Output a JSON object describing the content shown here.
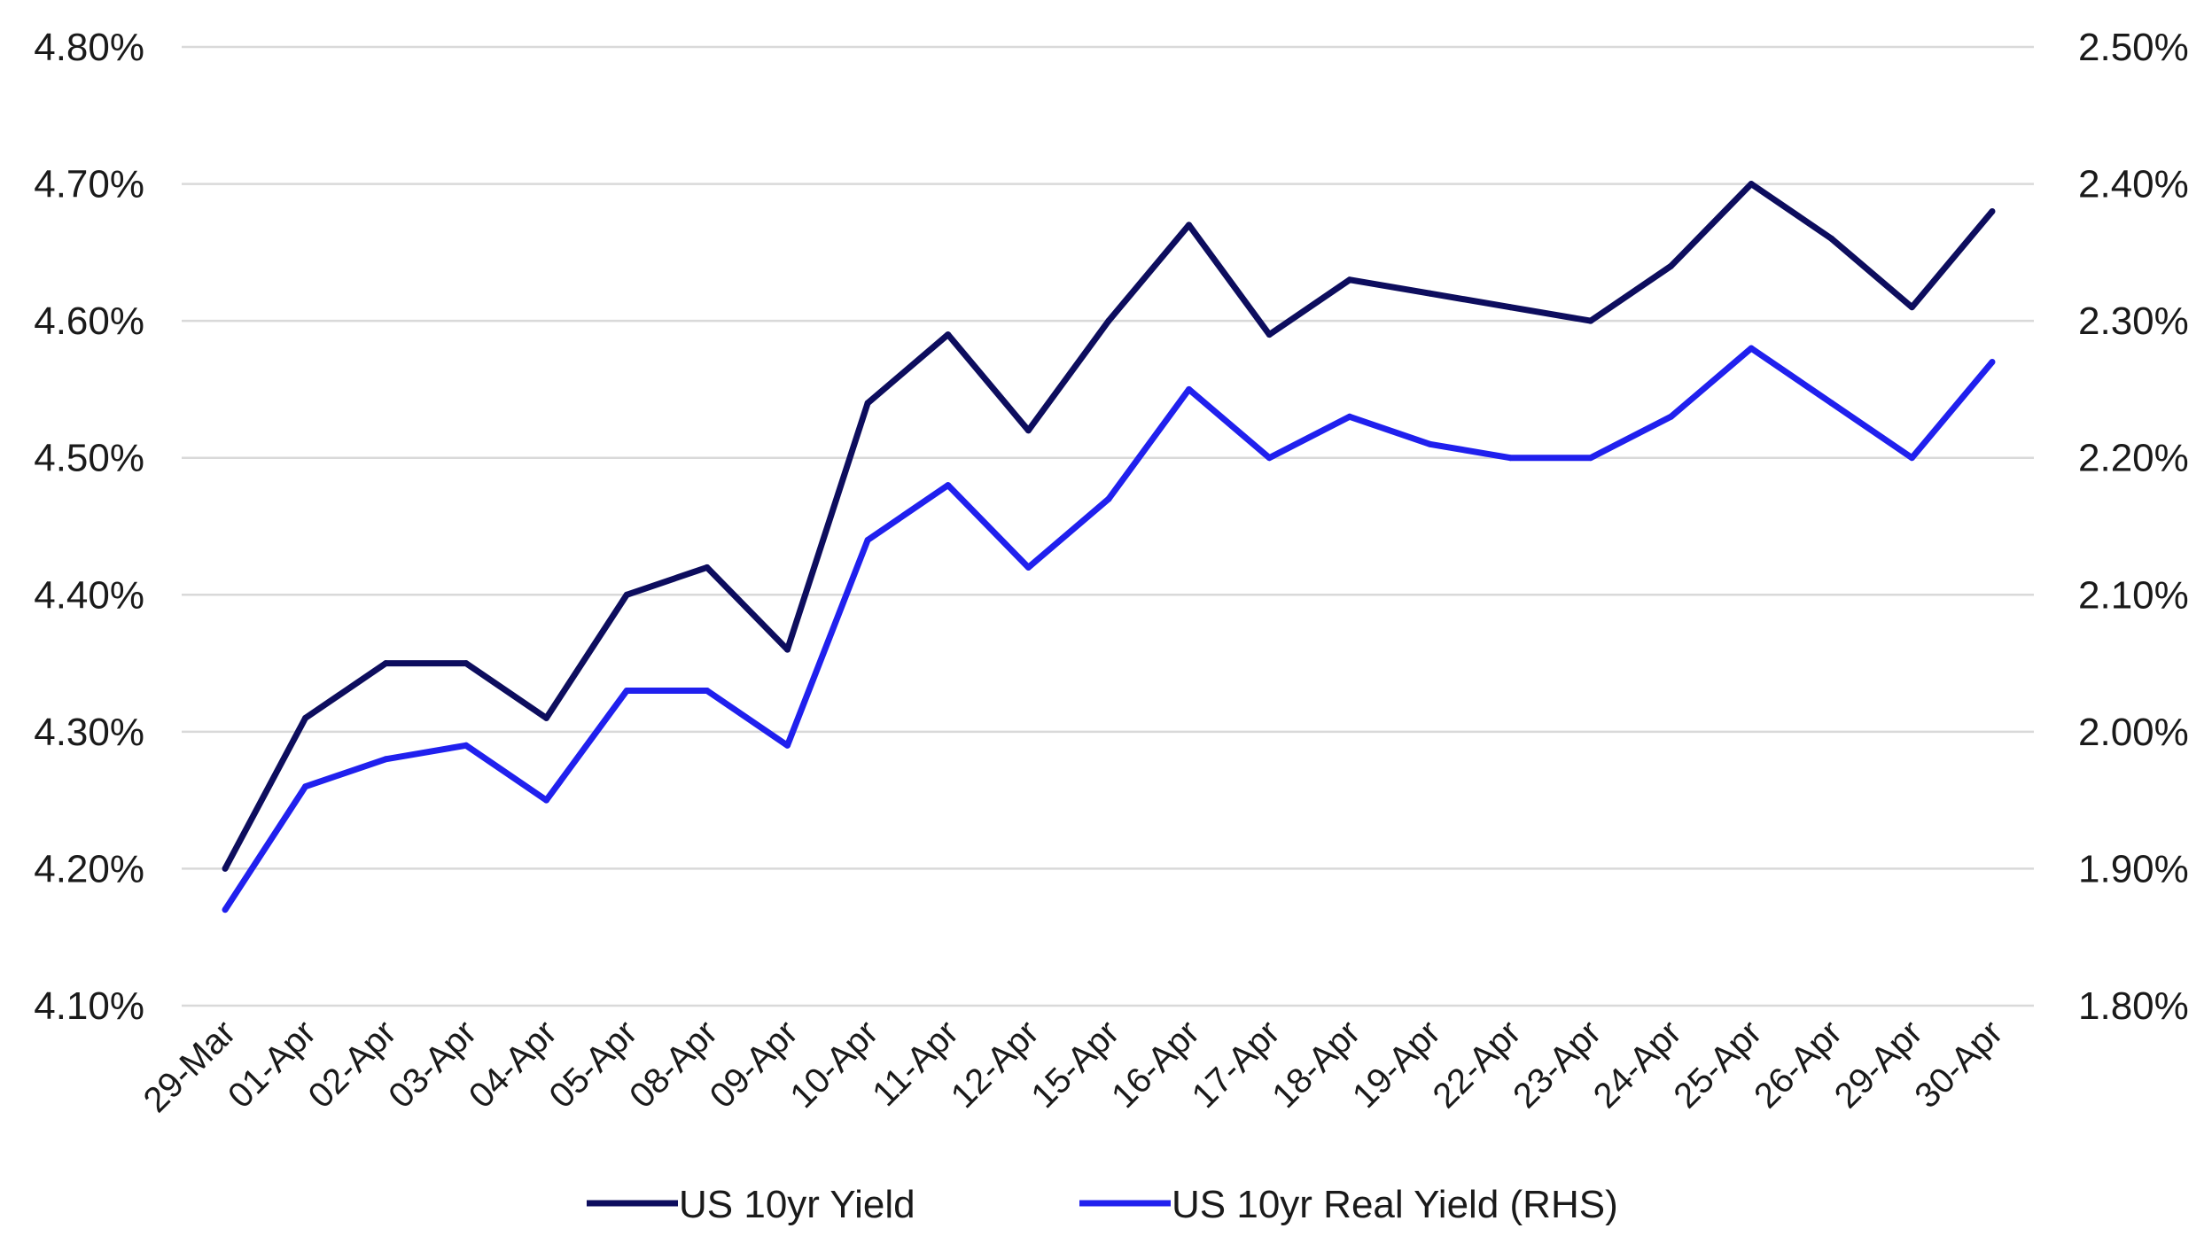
{
  "chart_data": {
    "type": "line",
    "title": "",
    "xlabel": "",
    "ylabel": "",
    "categories": [
      "29-Mar",
      "01-Apr",
      "02-Apr",
      "03-Apr",
      "04-Apr",
      "05-Apr",
      "08-Apr",
      "09-Apr",
      "10-Apr",
      "11-Apr",
      "12-Apr",
      "15-Apr",
      "16-Apr",
      "17-Apr",
      "18-Apr",
      "19-Apr",
      "22-Apr",
      "23-Apr",
      "24-Apr",
      "25-Apr",
      "26-Apr",
      "29-Apr",
      "30-Apr"
    ],
    "y_left": {
      "ylim": [
        4.1,
        4.8
      ],
      "ticks": [
        4.1,
        4.2,
        4.3,
        4.4,
        4.5,
        4.6,
        4.7,
        4.8
      ],
      "tick_labels": [
        "4.10%",
        "4.20%",
        "4.30%",
        "4.40%",
        "4.50%",
        "4.60%",
        "4.70%",
        "4.80%"
      ]
    },
    "y_right": {
      "ylim": [
        1.8,
        2.5
      ],
      "ticks": [
        1.8,
        1.9,
        2.0,
        2.1,
        2.2,
        2.3,
        2.4,
        2.5
      ],
      "tick_labels": [
        "1.80%",
        "1.90%",
        "2.00%",
        "2.10%",
        "2.20%",
        "2.30%",
        "2.40%",
        "2.50%"
      ]
    },
    "grid": true,
    "legend_position": "bottom",
    "series": [
      {
        "name": "US 10yr Yield",
        "axis": "left",
        "color": "#0d0d5e",
        "values": [
          4.2,
          4.31,
          4.35,
          4.35,
          4.31,
          4.4,
          4.42,
          4.36,
          4.54,
          4.59,
          4.52,
          4.6,
          4.67,
          4.59,
          4.63,
          4.62,
          4.61,
          4.6,
          4.64,
          4.7,
          4.66,
          4.61,
          4.68
        ]
      },
      {
        "name": "US 10yr Real Yield (RHS)",
        "axis": "right",
        "color": "#2020ee",
        "values": [
          1.87,
          1.96,
          1.98,
          1.99,
          1.95,
          2.03,
          2.03,
          1.99,
          2.14,
          2.18,
          2.12,
          2.17,
          2.25,
          2.2,
          2.23,
          2.21,
          2.2,
          2.2,
          2.23,
          2.28,
          2.24,
          2.2,
          2.27
        ]
      }
    ]
  }
}
